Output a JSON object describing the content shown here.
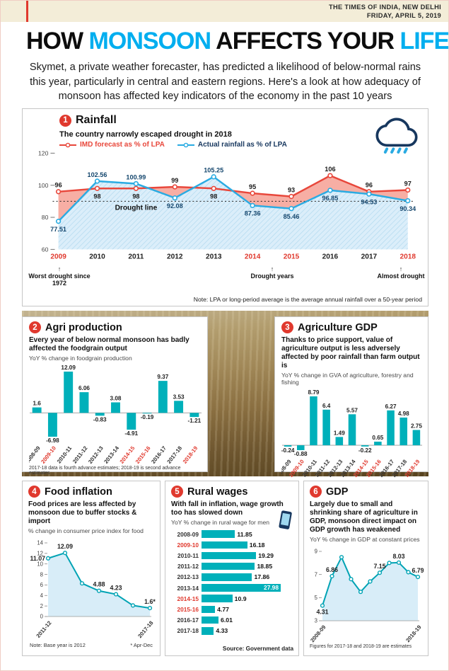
{
  "page": {
    "masthead_line1": "THE TIMES OF INDIA, NEW DELHI",
    "masthead_line2": "FRIDAY, APRIL 5, 2019",
    "title_parts": [
      "HOW ",
      "MONSOON",
      " AFFECTS YOUR ",
      "LIFE"
    ],
    "intro": "Skymet, a private weather forecaster, has predicted a likelihood of below-normal rains this year, particularly in central and eastern regions. Here's a look at how adequacy of monsoon has affected key indicators of the economy in the past 10 years"
  },
  "colors": {
    "accent_red": "#e0392e",
    "headline_cyan": "#00aeef",
    "teal": "#00b0ba",
    "sky_blue": "#2aabe2",
    "forecast_red": "#e8473b",
    "pink_fill": "#f7aea4",
    "light_blue_fill": "#d8edf8",
    "masthead_cream": "#f3edd8"
  },
  "sections": {
    "rainfall": {
      "number": "1",
      "title": "Rainfall",
      "subtitle": "The country narrowly escaped drought in 2018",
      "note": "Note: LPA or long-period average is the average annual rainfall over a 50-year period"
    },
    "agri": {
      "number": "2",
      "title": "Agri production",
      "desc": "Every year of below normal monsoon has badly affected the foodgrain output",
      "measure": "YoY % change in foodgrain production",
      "footnote": "2017-18 data is fourth advance estimates; 2018-19 is second advance estimates"
    },
    "agdp": {
      "number": "3",
      "title": "Agriculture GDP",
      "desc": "Thanks to price support, value of agriculture output is less adversely affected by poor rainfall than farm output is",
      "measure": "YoY % change in GVA of agriculture, forestry and fishing"
    },
    "food": {
      "number": "4",
      "title": "Food inflation",
      "desc": "Food prices are less affected by monsoon due to buffer stocks & import",
      "measure": "% change in consumer price index for food",
      "note1": "Note: Base year is 2012",
      "note2": "* Apr-Dec"
    },
    "wages": {
      "number": "5",
      "title": "Rural wages",
      "desc": "With fall in inflation, wage growth too has slowed down",
      "measure": "YoY % change in rural wage for men",
      "source": "Source: Government data"
    },
    "gdp": {
      "number": "6",
      "title": "GDP",
      "desc": "Largely due to small and shrinking share of agriculture in GDP, monsoon direct impact on GDP growth has weakened",
      "measure": "YoY % change in GDP at constant prices",
      "footnote": "Figures for 2017-18 and 2018-19 are estimates"
    }
  },
  "chart_data": [
    {
      "id": "rainfall",
      "type": "line",
      "title": "Rainfall",
      "subtitle": "The country narrowly escaped drought in 2018",
      "categories": [
        "2009",
        "2010",
        "2011",
        "2012",
        "2013",
        "2014",
        "2015",
        "2016",
        "2017",
        "2018"
      ],
      "series": [
        {
          "name": "IMD forecast as % of LPA",
          "color": "#e8473b",
          "fill": "#f7aea4",
          "values": [
            96,
            98,
            98,
            99,
            98,
            95,
            93,
            106,
            96,
            97
          ]
        },
        {
          "name": "Actual rainfall as % of LPA",
          "color": "#2aabe2",
          "fill": "#dbeefa",
          "values": [
            77.51,
            102.56,
            100.99,
            92.08,
            105.25,
            87.36,
            85.46,
            96.85,
            94.53,
            90.34
          ]
        }
      ],
      "ylim": [
        60,
        120
      ],
      "yticks": [
        60,
        80,
        100,
        120
      ],
      "drought_line": 90,
      "drought_line_label": "Drought line",
      "drought_years": [
        "2009",
        "2014",
        "2015",
        "2018"
      ],
      "annotations": {
        "left": "Worst drought since 1972",
        "center": "Drought years",
        "right": "Almost drought"
      }
    },
    {
      "id": "agri-production",
      "type": "bar",
      "title": "YoY % change in foodgrain production",
      "categories": [
        "2008-09",
        "2009-10",
        "2010-11",
        "2011-12",
        "2012-13",
        "2013-14",
        "2014-15",
        "2015-16",
        "2016-17",
        "2017-18",
        "2018-19"
      ],
      "values": [
        1.6,
        -6.98,
        12.09,
        6.06,
        -0.83,
        3.08,
        -4.91,
        -0.19,
        9.37,
        3.53,
        -1.21
      ],
      "color": "#00b0ba",
      "drought_years": [
        "2009-10",
        "2014-15",
        "2015-16",
        "2018-19"
      ]
    },
    {
      "id": "agriculture-gdp",
      "type": "bar",
      "title": "YoY % change in GVA of agriculture, forestry and fishing",
      "categories": [
        "2008-09",
        "2009-10",
        "2010-11",
        "2011-12",
        "2012-13",
        "2013-14",
        "2014-15",
        "2015-16",
        "2016-17",
        "2017-18",
        "2018-19"
      ],
      "values": [
        -0.24,
        -0.88,
        8.79,
        6.4,
        1.49,
        5.57,
        -0.22,
        0.65,
        6.27,
        4.98,
        2.75
      ],
      "color": "#00b0ba",
      "drought_years": [
        "2009-10",
        "2014-15",
        "2015-16",
        "2018-19"
      ]
    },
    {
      "id": "food-inflation",
      "type": "line",
      "title": "% change in consumer price index for food",
      "categories": [
        "2011-12",
        "2012-13",
        "2013-14",
        "2014-15",
        "2015-16",
        "2016-17",
        "2017-18"
      ],
      "values": [
        11.07,
        12.09,
        6.3,
        4.88,
        4.23,
        2.1,
        1.6
      ],
      "point_labels": [
        {
          "i": 0,
          "text": "11.07",
          "pos": "left"
        },
        {
          "i": 1,
          "text": "12.09",
          "pos": "above"
        },
        {
          "i": 3,
          "text": "4.88",
          "pos": "above"
        },
        {
          "i": 4,
          "text": "4.23",
          "pos": "above"
        },
        {
          "i": 6,
          "text": "1.6*",
          "pos": "above"
        }
      ],
      "ylim": [
        0,
        14
      ],
      "yticks": [
        0,
        2,
        4,
        6,
        8,
        10,
        12,
        14
      ],
      "color": "#00a3b4",
      "fill": "#d8edf8"
    },
    {
      "id": "rural-wages",
      "type": "bar",
      "orientation": "horizontal",
      "title": "YoY % change in rural wage for men",
      "categories": [
        "2008-09",
        "2009-10",
        "2010-11",
        "2011-12",
        "2012-13",
        "2013-14",
        "2014-15",
        "2015-16",
        "2016-17",
        "2017-18"
      ],
      "values": [
        11.85,
        16.18,
        19.29,
        18.85,
        17.86,
        27.98,
        10.9,
        4.77,
        6.01,
        4.33
      ],
      "color": "#00b0ba",
      "drought_years": [
        "2009-10",
        "2014-15",
        "2015-16"
      ]
    },
    {
      "id": "gdp",
      "type": "line",
      "title": "YoY % change in GDP at constant prices",
      "categories": [
        "2008-09",
        "2009-10",
        "2010-11",
        "2011-12",
        "2012-13",
        "2013-14",
        "2014-15",
        "2015-16",
        "2016-17",
        "2017-18",
        "2018-19"
      ],
      "values": [
        4.31,
        6.86,
        8.5,
        6.6,
        5.5,
        6.4,
        7.15,
        8.0,
        8.03,
        7.2,
        6.79
      ],
      "point_labels": [
        {
          "i": 0,
          "text": "4.31",
          "pos": "below"
        },
        {
          "i": 1,
          "text": "6.86",
          "pos": "above"
        },
        {
          "i": 6,
          "text": "7.15",
          "pos": "above"
        },
        {
          "i": 8,
          "text": "8.03",
          "pos": "above"
        },
        {
          "i": 10,
          "text": "6.79",
          "pos": "above"
        }
      ],
      "ylim": [
        3,
        9
      ],
      "yticks": [
        3,
        5,
        7,
        9
      ],
      "color": "#00a3b4",
      "fill": "#d8edf8"
    }
  ]
}
